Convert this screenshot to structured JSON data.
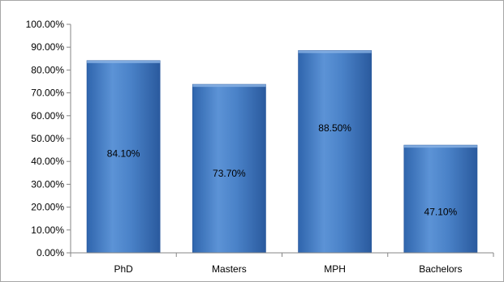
{
  "chart_data": {
    "type": "bar",
    "categories": [
      "PhD",
      "Masters",
      "MPH",
      "Bachelors"
    ],
    "values": [
      84.1,
      73.7,
      88.5,
      47.1
    ],
    "data_labels": [
      "84.10%",
      "73.70%",
      "88.50%",
      "47.10%"
    ],
    "y_ticks": [
      "0.00%",
      "10.00%",
      "20.00%",
      "30.00%",
      "40.00%",
      "50.00%",
      "60.00%",
      "70.00%",
      "80.00%",
      "90.00%",
      "100.00%"
    ],
    "ylim": [
      0,
      100
    ],
    "grid": false,
    "legend": "none",
    "title": "",
    "xlabel": "",
    "ylabel": "",
    "colors": {
      "bar": "#4f81bd",
      "bar_dark": "#2a5b9c",
      "bar_light": "#7aa6dc",
      "axis": "#868686",
      "frame": "#a6a6a6"
    }
  }
}
